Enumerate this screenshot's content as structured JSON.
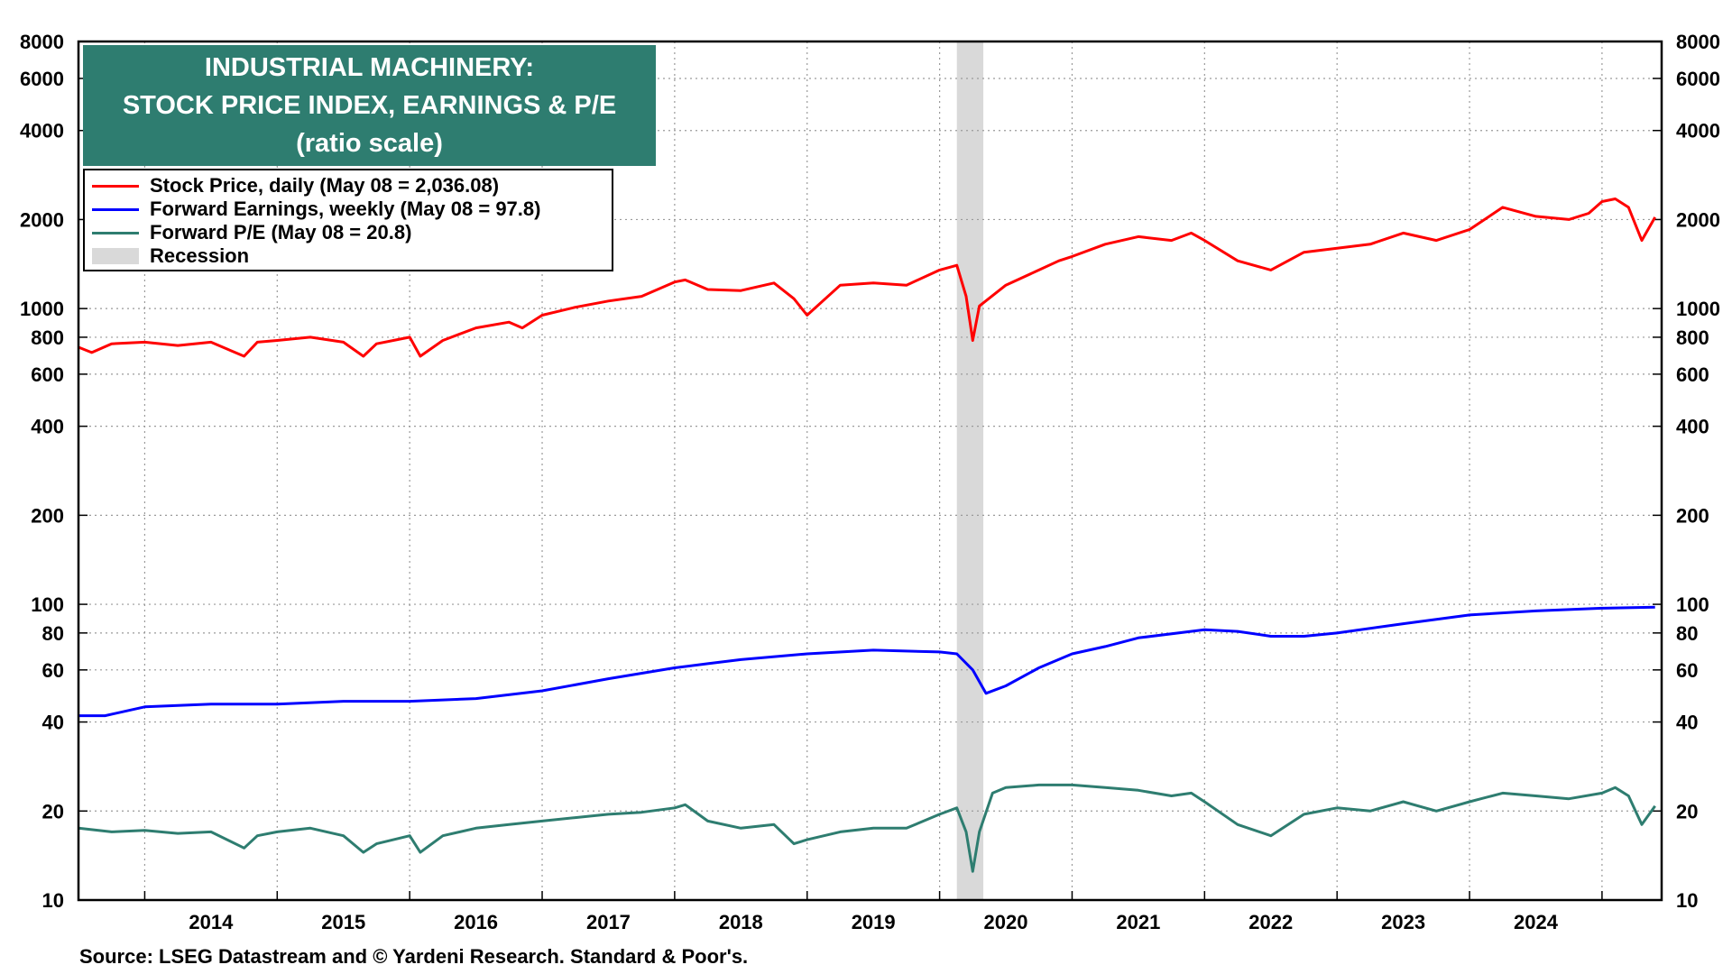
{
  "title": {
    "line1": "INDUSTRIAL MACHINERY:",
    "line2": "STOCK PRICE INDEX, EARNINGS & P/E",
    "line3": "(ratio scale)"
  },
  "legend": [
    {
      "label": "Stock Price, daily (May 08 = 2,036.08)",
      "color": "#ff0000",
      "kind": "line"
    },
    {
      "label": "Forward Earnings, weekly (May 08 = 97.8)",
      "color": "#0000ff",
      "kind": "line"
    },
    {
      "label": "Forward P/E (May 08 = 20.8)",
      "color": "#2e7d70",
      "kind": "line"
    },
    {
      "label": "Recession",
      "color": "#d9d9d9",
      "kind": "box"
    }
  ],
  "source": "Source: LSEG Datastream and © Yardeni Research. Standard & Poor's.",
  "chart_data": {
    "type": "line",
    "yscale": "log",
    "ylim": [
      10,
      8000
    ],
    "xlim": [
      2013.5,
      2025.45
    ],
    "y_ticks": [
      10,
      20,
      40,
      60,
      80,
      100,
      200,
      400,
      600,
      800,
      1000,
      2000,
      4000,
      6000,
      8000
    ],
    "x_tick_labels": [
      "2014",
      "2015",
      "2016",
      "2017",
      "2018",
      "2019",
      "2020",
      "2021",
      "2022",
      "2023",
      "2024"
    ],
    "grid": true,
    "legend_position": "top-left",
    "recession": [
      2020.13,
      2020.33
    ],
    "series": [
      {
        "name": "Stock Price, daily (May 08 = 2,036.08)",
        "color": "#ff0000",
        "x": [
          2013.5,
          2013.6,
          2013.75,
          2014.0,
          2014.25,
          2014.5,
          2014.75,
          2014.85,
          2015.0,
          2015.25,
          2015.5,
          2015.65,
          2015.75,
          2016.0,
          2016.08,
          2016.25,
          2016.5,
          2016.75,
          2016.85,
          2017.0,
          2017.25,
          2017.5,
          2017.75,
          2018.0,
          2018.08,
          2018.25,
          2018.5,
          2018.75,
          2018.9,
          2019.0,
          2019.25,
          2019.5,
          2019.75,
          2020.0,
          2020.13,
          2020.2,
          2020.25,
          2020.3,
          2020.5,
          2020.75,
          2020.9,
          2021.0,
          2021.25,
          2021.5,
          2021.75,
          2021.9,
          2022.0,
          2022.25,
          2022.5,
          2022.75,
          2023.0,
          2023.25,
          2023.5,
          2023.75,
          2024.0,
          2024.25,
          2024.5,
          2024.75,
          2024.9,
          2025.0,
          2025.1,
          2025.2,
          2025.3,
          2025.4
        ],
        "values": [
          740,
          710,
          760,
          770,
          750,
          770,
          690,
          770,
          780,
          800,
          770,
          690,
          760,
          800,
          690,
          780,
          860,
          900,
          860,
          950,
          1010,
          1060,
          1100,
          1230,
          1250,
          1160,
          1150,
          1220,
          1080,
          950,
          1200,
          1220,
          1200,
          1350,
          1400,
          1100,
          780,
          1020,
          1200,
          1350,
          1450,
          1500,
          1650,
          1750,
          1700,
          1800,
          1700,
          1450,
          1350,
          1550,
          1600,
          1650,
          1800,
          1700,
          1850,
          2200,
          2050,
          2000,
          2100,
          2300,
          2350,
          2200,
          1700,
          2036
        ]
      },
      {
        "name": "Forward Earnings, weekly (May 08 = 97.8)",
        "color": "#0000ff",
        "x": [
          2013.5,
          2013.7,
          2014.0,
          2014.5,
          2015.0,
          2015.5,
          2016.0,
          2016.5,
          2017.0,
          2017.5,
          2018.0,
          2018.25,
          2018.5,
          2019.0,
          2019.5,
          2020.0,
          2020.13,
          2020.25,
          2020.35,
          2020.5,
          2020.75,
          2021.0,
          2021.25,
          2021.5,
          2022.0,
          2022.25,
          2022.5,
          2022.75,
          2023.0,
          2023.5,
          2024.0,
          2024.5,
          2025.0,
          2025.4
        ],
        "values": [
          42,
          42,
          45,
          46,
          46,
          47,
          47,
          48,
          51,
          56,
          61,
          63,
          65,
          68,
          70,
          69,
          68,
          60,
          50,
          53,
          61,
          68,
          72,
          77,
          82,
          81,
          78,
          78,
          80,
          86,
          92,
          95,
          97,
          97.8
        ]
      },
      {
        "name": "Forward P/E (May 08 = 20.8)",
        "color": "#2e7d70",
        "x": [
          2013.5,
          2013.75,
          2014.0,
          2014.25,
          2014.5,
          2014.75,
          2014.85,
          2015.0,
          2015.25,
          2015.5,
          2015.65,
          2015.75,
          2016.0,
          2016.08,
          2016.25,
          2016.5,
          2016.75,
          2017.0,
          2017.25,
          2017.5,
          2017.75,
          2018.0,
          2018.08,
          2018.25,
          2018.5,
          2018.75,
          2018.9,
          2019.0,
          2019.25,
          2019.5,
          2019.75,
          2020.0,
          2020.13,
          2020.2,
          2020.25,
          2020.3,
          2020.4,
          2020.5,
          2020.75,
          2021.0,
          2021.25,
          2021.5,
          2021.75,
          2021.9,
          2022.0,
          2022.25,
          2022.5,
          2022.75,
          2023.0,
          2023.25,
          2023.5,
          2023.75,
          2024.0,
          2024.25,
          2024.5,
          2024.75,
          2025.0,
          2025.1,
          2025.2,
          2025.3,
          2025.4
        ],
        "values": [
          17.5,
          17,
          17.2,
          16.8,
          17,
          15,
          16.5,
          17,
          17.5,
          16.5,
          14.5,
          15.5,
          16.5,
          14.5,
          16.5,
          17.5,
          18,
          18.5,
          19,
          19.5,
          19.8,
          20.5,
          21,
          18.5,
          17.5,
          18,
          15.5,
          16,
          17,
          17.5,
          17.5,
          19.5,
          20.5,
          17,
          12.5,
          17,
          23,
          24,
          24.5,
          24.5,
          24,
          23.5,
          22.5,
          23,
          21.5,
          18,
          16.5,
          19.5,
          20.5,
          20,
          21.5,
          20,
          21.5,
          23,
          22.5,
          22,
          23,
          24,
          22.5,
          18,
          20.8
        ]
      }
    ]
  }
}
